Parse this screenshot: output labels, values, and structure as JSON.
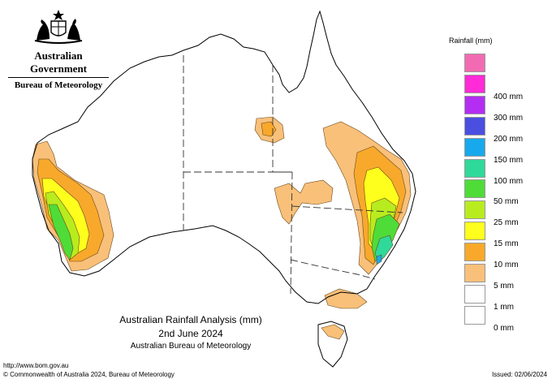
{
  "header": {
    "government": "Australian Government",
    "agency": "Bureau of Meteorology"
  },
  "legend": {
    "title": "Rainfall (mm)",
    "items": [
      {
        "label": "",
        "color": "#f26bb2"
      },
      {
        "label": "400 mm",
        "color": "#ff2bd6"
      },
      {
        "label": "300 mm",
        "color": "#b32ef2"
      },
      {
        "label": "200 mm",
        "color": "#4b4fe0"
      },
      {
        "label": "150 mm",
        "color": "#18a9ec"
      },
      {
        "label": "100 mm",
        "color": "#2fd99a"
      },
      {
        "label": "50 mm",
        "color": "#4fdc38"
      },
      {
        "label": "25 mm",
        "color": "#b8ec1f"
      },
      {
        "label": "15 mm",
        "color": "#ffff1e"
      },
      {
        "label": "10 mm",
        "color": "#f8a92b"
      },
      {
        "label": "5 mm",
        "color": "#f9c07a"
      },
      {
        "label": "1 mm",
        "color": "#ffffff"
      },
      {
        "label": "0 mm",
        "color": "#ffffff"
      }
    ]
  },
  "caption": {
    "title": "Australian Rainfall Analysis (mm)",
    "date": "2nd June 2024",
    "source": "Australian Bureau of Meteorology"
  },
  "footer": {
    "url": "http://www.bom.gov.au",
    "copyright": "© Commonwealth of Australia 2024, Bureau of Meteorology",
    "issued": "Issued: 02/06/2024"
  }
}
